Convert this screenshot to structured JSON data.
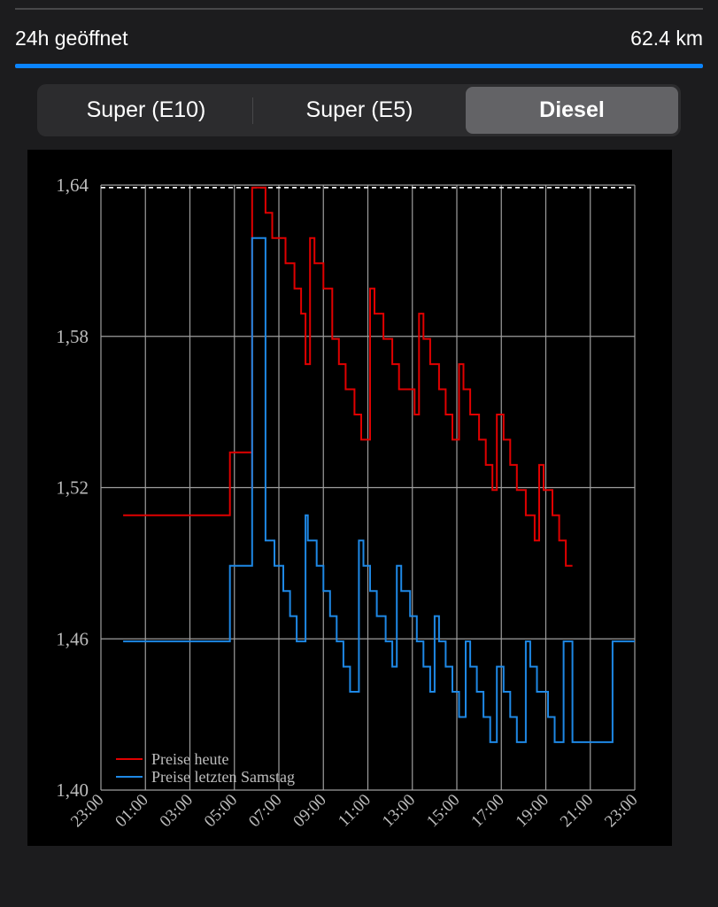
{
  "header": {
    "opening_label": "24h geöffnet",
    "distance": "62.4 km"
  },
  "fuel_tabs": [
    {
      "label": "Super (E10)",
      "selected": false
    },
    {
      "label": "Super (E5)",
      "selected": false
    },
    {
      "label": "Diesel",
      "selected": true
    }
  ],
  "colors": {
    "accent": "#0a84ff",
    "today_series": "#e00000",
    "last_saturday_series": "#1e88e5",
    "background": "#1c1c1e"
  },
  "chart_data": {
    "type": "line",
    "step": true,
    "grid": true,
    "legend_position": "bottom-left",
    "x_ticks": [
      "23:00",
      "01:00",
      "03:00",
      "05:00",
      "07:00",
      "09:00",
      "11:00",
      "13:00",
      "15:00",
      "17:00",
      "19:00",
      "21:00",
      "23:00"
    ],
    "x_unit": "hours since 23:00 of previous day",
    "xlim": [
      0,
      24
    ],
    "y_ticks": [
      "1,40",
      "1,46",
      "1,52",
      "1,58",
      "1,64"
    ],
    "ylim": [
      1.4,
      1.64
    ],
    "reference_line": 1.639,
    "series": [
      {
        "name": "Preise heute",
        "color": "#e00000",
        "points": [
          [
            1.0,
            1.509
          ],
          [
            5.8,
            1.509
          ],
          [
            5.8,
            1.534
          ],
          [
            6.8,
            1.534
          ],
          [
            6.8,
            1.519
          ],
          [
            6.8,
            1.639
          ],
          [
            7.4,
            1.639
          ],
          [
            7.4,
            1.629
          ],
          [
            7.7,
            1.629
          ],
          [
            7.7,
            1.619
          ],
          [
            8.3,
            1.619
          ],
          [
            8.3,
            1.609
          ],
          [
            8.7,
            1.609
          ],
          [
            8.7,
            1.599
          ],
          [
            9.0,
            1.599
          ],
          [
            9.0,
            1.589
          ],
          [
            9.2,
            1.589
          ],
          [
            9.2,
            1.569
          ],
          [
            9.4,
            1.569
          ],
          [
            9.4,
            1.619
          ],
          [
            9.6,
            1.619
          ],
          [
            9.6,
            1.609
          ],
          [
            10.0,
            1.609
          ],
          [
            10.0,
            1.599
          ],
          [
            10.4,
            1.599
          ],
          [
            10.4,
            1.579
          ],
          [
            10.7,
            1.579
          ],
          [
            10.7,
            1.569
          ],
          [
            11.0,
            1.569
          ],
          [
            11.0,
            1.559
          ],
          [
            11.4,
            1.559
          ],
          [
            11.4,
            1.549
          ],
          [
            11.7,
            1.549
          ],
          [
            11.7,
            1.539
          ],
          [
            12.1,
            1.539
          ],
          [
            12.1,
            1.599
          ],
          [
            12.3,
            1.599
          ],
          [
            12.3,
            1.589
          ],
          [
            12.7,
            1.589
          ],
          [
            12.7,
            1.579
          ],
          [
            13.1,
            1.579
          ],
          [
            13.1,
            1.569
          ],
          [
            13.4,
            1.569
          ],
          [
            13.4,
            1.559
          ],
          [
            14.1,
            1.559
          ],
          [
            14.1,
            1.549
          ],
          [
            14.3,
            1.549
          ],
          [
            14.3,
            1.589
          ],
          [
            14.5,
            1.589
          ],
          [
            14.5,
            1.579
          ],
          [
            14.8,
            1.579
          ],
          [
            14.8,
            1.569
          ],
          [
            15.2,
            1.569
          ],
          [
            15.2,
            1.559
          ],
          [
            15.5,
            1.559
          ],
          [
            15.5,
            1.549
          ],
          [
            15.8,
            1.549
          ],
          [
            15.8,
            1.539
          ],
          [
            16.1,
            1.539
          ],
          [
            16.1,
            1.569
          ],
          [
            16.3,
            1.569
          ],
          [
            16.3,
            1.559
          ],
          [
            16.6,
            1.559
          ],
          [
            16.6,
            1.549
          ],
          [
            17.0,
            1.549
          ],
          [
            17.0,
            1.539
          ],
          [
            17.3,
            1.539
          ],
          [
            17.3,
            1.529
          ],
          [
            17.6,
            1.529
          ],
          [
            17.6,
            1.519
          ],
          [
            17.8,
            1.519
          ],
          [
            17.8,
            1.549
          ],
          [
            18.1,
            1.549
          ],
          [
            18.1,
            1.539
          ],
          [
            18.4,
            1.539
          ],
          [
            18.4,
            1.529
          ],
          [
            18.7,
            1.529
          ],
          [
            18.7,
            1.519
          ],
          [
            19.1,
            1.519
          ],
          [
            19.1,
            1.509
          ],
          [
            19.5,
            1.509
          ],
          [
            19.5,
            1.499
          ],
          [
            19.7,
            1.499
          ],
          [
            19.7,
            1.529
          ],
          [
            19.9,
            1.529
          ],
          [
            19.9,
            1.519
          ],
          [
            20.3,
            1.519
          ],
          [
            20.3,
            1.509
          ],
          [
            20.6,
            1.509
          ],
          [
            20.6,
            1.499
          ],
          [
            20.9,
            1.499
          ],
          [
            20.9,
            1.489
          ],
          [
            21.2,
            1.489
          ]
        ]
      },
      {
        "name": "Preise letzten Samstag",
        "color": "#1e88e5",
        "points": [
          [
            1.0,
            1.459
          ],
          [
            5.8,
            1.459
          ],
          [
            5.8,
            1.489
          ],
          [
            6.8,
            1.489
          ],
          [
            6.8,
            1.619
          ],
          [
            7.4,
            1.619
          ],
          [
            7.4,
            1.499
          ],
          [
            7.8,
            1.499
          ],
          [
            7.8,
            1.489
          ],
          [
            8.2,
            1.489
          ],
          [
            8.2,
            1.479
          ],
          [
            8.5,
            1.479
          ],
          [
            8.5,
            1.469
          ],
          [
            8.8,
            1.469
          ],
          [
            8.8,
            1.459
          ],
          [
            9.2,
            1.459
          ],
          [
            9.2,
            1.509
          ],
          [
            9.3,
            1.509
          ],
          [
            9.3,
            1.499
          ],
          [
            9.7,
            1.499
          ],
          [
            9.7,
            1.489
          ],
          [
            10.0,
            1.489
          ],
          [
            10.0,
            1.479
          ],
          [
            10.3,
            1.479
          ],
          [
            10.3,
            1.469
          ],
          [
            10.6,
            1.469
          ],
          [
            10.6,
            1.459
          ],
          [
            10.9,
            1.459
          ],
          [
            10.9,
            1.449
          ],
          [
            11.2,
            1.449
          ],
          [
            11.2,
            1.439
          ],
          [
            11.6,
            1.439
          ],
          [
            11.6,
            1.499
          ],
          [
            11.8,
            1.499
          ],
          [
            11.8,
            1.489
          ],
          [
            12.1,
            1.489
          ],
          [
            12.1,
            1.479
          ],
          [
            12.4,
            1.479
          ],
          [
            12.4,
            1.469
          ],
          [
            12.8,
            1.469
          ],
          [
            12.8,
            1.459
          ],
          [
            13.1,
            1.459
          ],
          [
            13.1,
            1.449
          ],
          [
            13.3,
            1.449
          ],
          [
            13.3,
            1.489
          ],
          [
            13.5,
            1.489
          ],
          [
            13.5,
            1.479
          ],
          [
            13.9,
            1.479
          ],
          [
            13.9,
            1.469
          ],
          [
            14.2,
            1.469
          ],
          [
            14.2,
            1.459
          ],
          [
            14.5,
            1.459
          ],
          [
            14.5,
            1.449
          ],
          [
            14.8,
            1.449
          ],
          [
            14.8,
            1.439
          ],
          [
            15.0,
            1.439
          ],
          [
            15.0,
            1.469
          ],
          [
            15.2,
            1.469
          ],
          [
            15.2,
            1.459
          ],
          [
            15.5,
            1.459
          ],
          [
            15.5,
            1.449
          ],
          [
            15.8,
            1.449
          ],
          [
            15.8,
            1.439
          ],
          [
            16.1,
            1.439
          ],
          [
            16.1,
            1.429
          ],
          [
            16.4,
            1.429
          ],
          [
            16.4,
            1.459
          ],
          [
            16.6,
            1.459
          ],
          [
            16.6,
            1.449
          ],
          [
            16.9,
            1.449
          ],
          [
            16.9,
            1.439
          ],
          [
            17.2,
            1.439
          ],
          [
            17.2,
            1.429
          ],
          [
            17.5,
            1.429
          ],
          [
            17.5,
            1.419
          ],
          [
            17.8,
            1.419
          ],
          [
            17.8,
            1.449
          ],
          [
            18.1,
            1.449
          ],
          [
            18.1,
            1.439
          ],
          [
            18.4,
            1.439
          ],
          [
            18.4,
            1.429
          ],
          [
            18.7,
            1.429
          ],
          [
            18.7,
            1.419
          ],
          [
            19.1,
            1.419
          ],
          [
            19.1,
            1.459
          ],
          [
            19.3,
            1.459
          ],
          [
            19.3,
            1.449
          ],
          [
            19.6,
            1.449
          ],
          [
            19.6,
            1.439
          ],
          [
            20.1,
            1.439
          ],
          [
            20.1,
            1.429
          ],
          [
            20.4,
            1.429
          ],
          [
            20.4,
            1.419
          ],
          [
            20.8,
            1.419
          ],
          [
            20.8,
            1.459
          ],
          [
            21.2,
            1.459
          ],
          [
            21.2,
            1.419
          ],
          [
            23.0,
            1.419
          ],
          [
            23.0,
            1.459
          ],
          [
            24.0,
            1.459
          ]
        ]
      }
    ]
  }
}
